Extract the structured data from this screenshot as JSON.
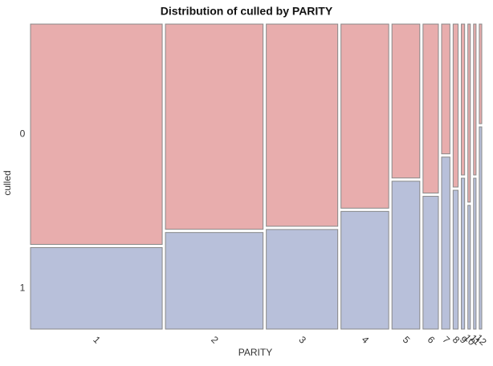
{
  "chart_data": {
    "type": "mosaic",
    "title": "Distribution of culled by PARITY",
    "x_label": "PARITY",
    "y_label": "culled",
    "categories": [
      "1",
      "2",
      "3",
      "4",
      "5",
      "6",
      "7",
      "8",
      "9",
      "10",
      "11",
      "12"
    ],
    "widths": [
      31.7,
      23.5,
      17.2,
      11.5,
      6.7,
      3.7,
      2.0,
      1.2,
      0.8,
      0.6,
      0.6,
      0.6
    ],
    "series": [
      {
        "name": "0",
        "color": "#e8adad",
        "values": [
          0.73,
          0.68,
          0.67,
          0.61,
          0.51,
          0.56,
          0.43,
          0.54,
          0.5,
          0.59,
          0.5,
          0.33
        ]
      },
      {
        "name": "1",
        "color": "#b8c0da",
        "values": [
          0.27,
          0.32,
          0.33,
          0.39,
          0.49,
          0.44,
          0.57,
          0.46,
          0.5,
          0.41,
          0.5,
          0.67
        ]
      }
    ]
  }
}
